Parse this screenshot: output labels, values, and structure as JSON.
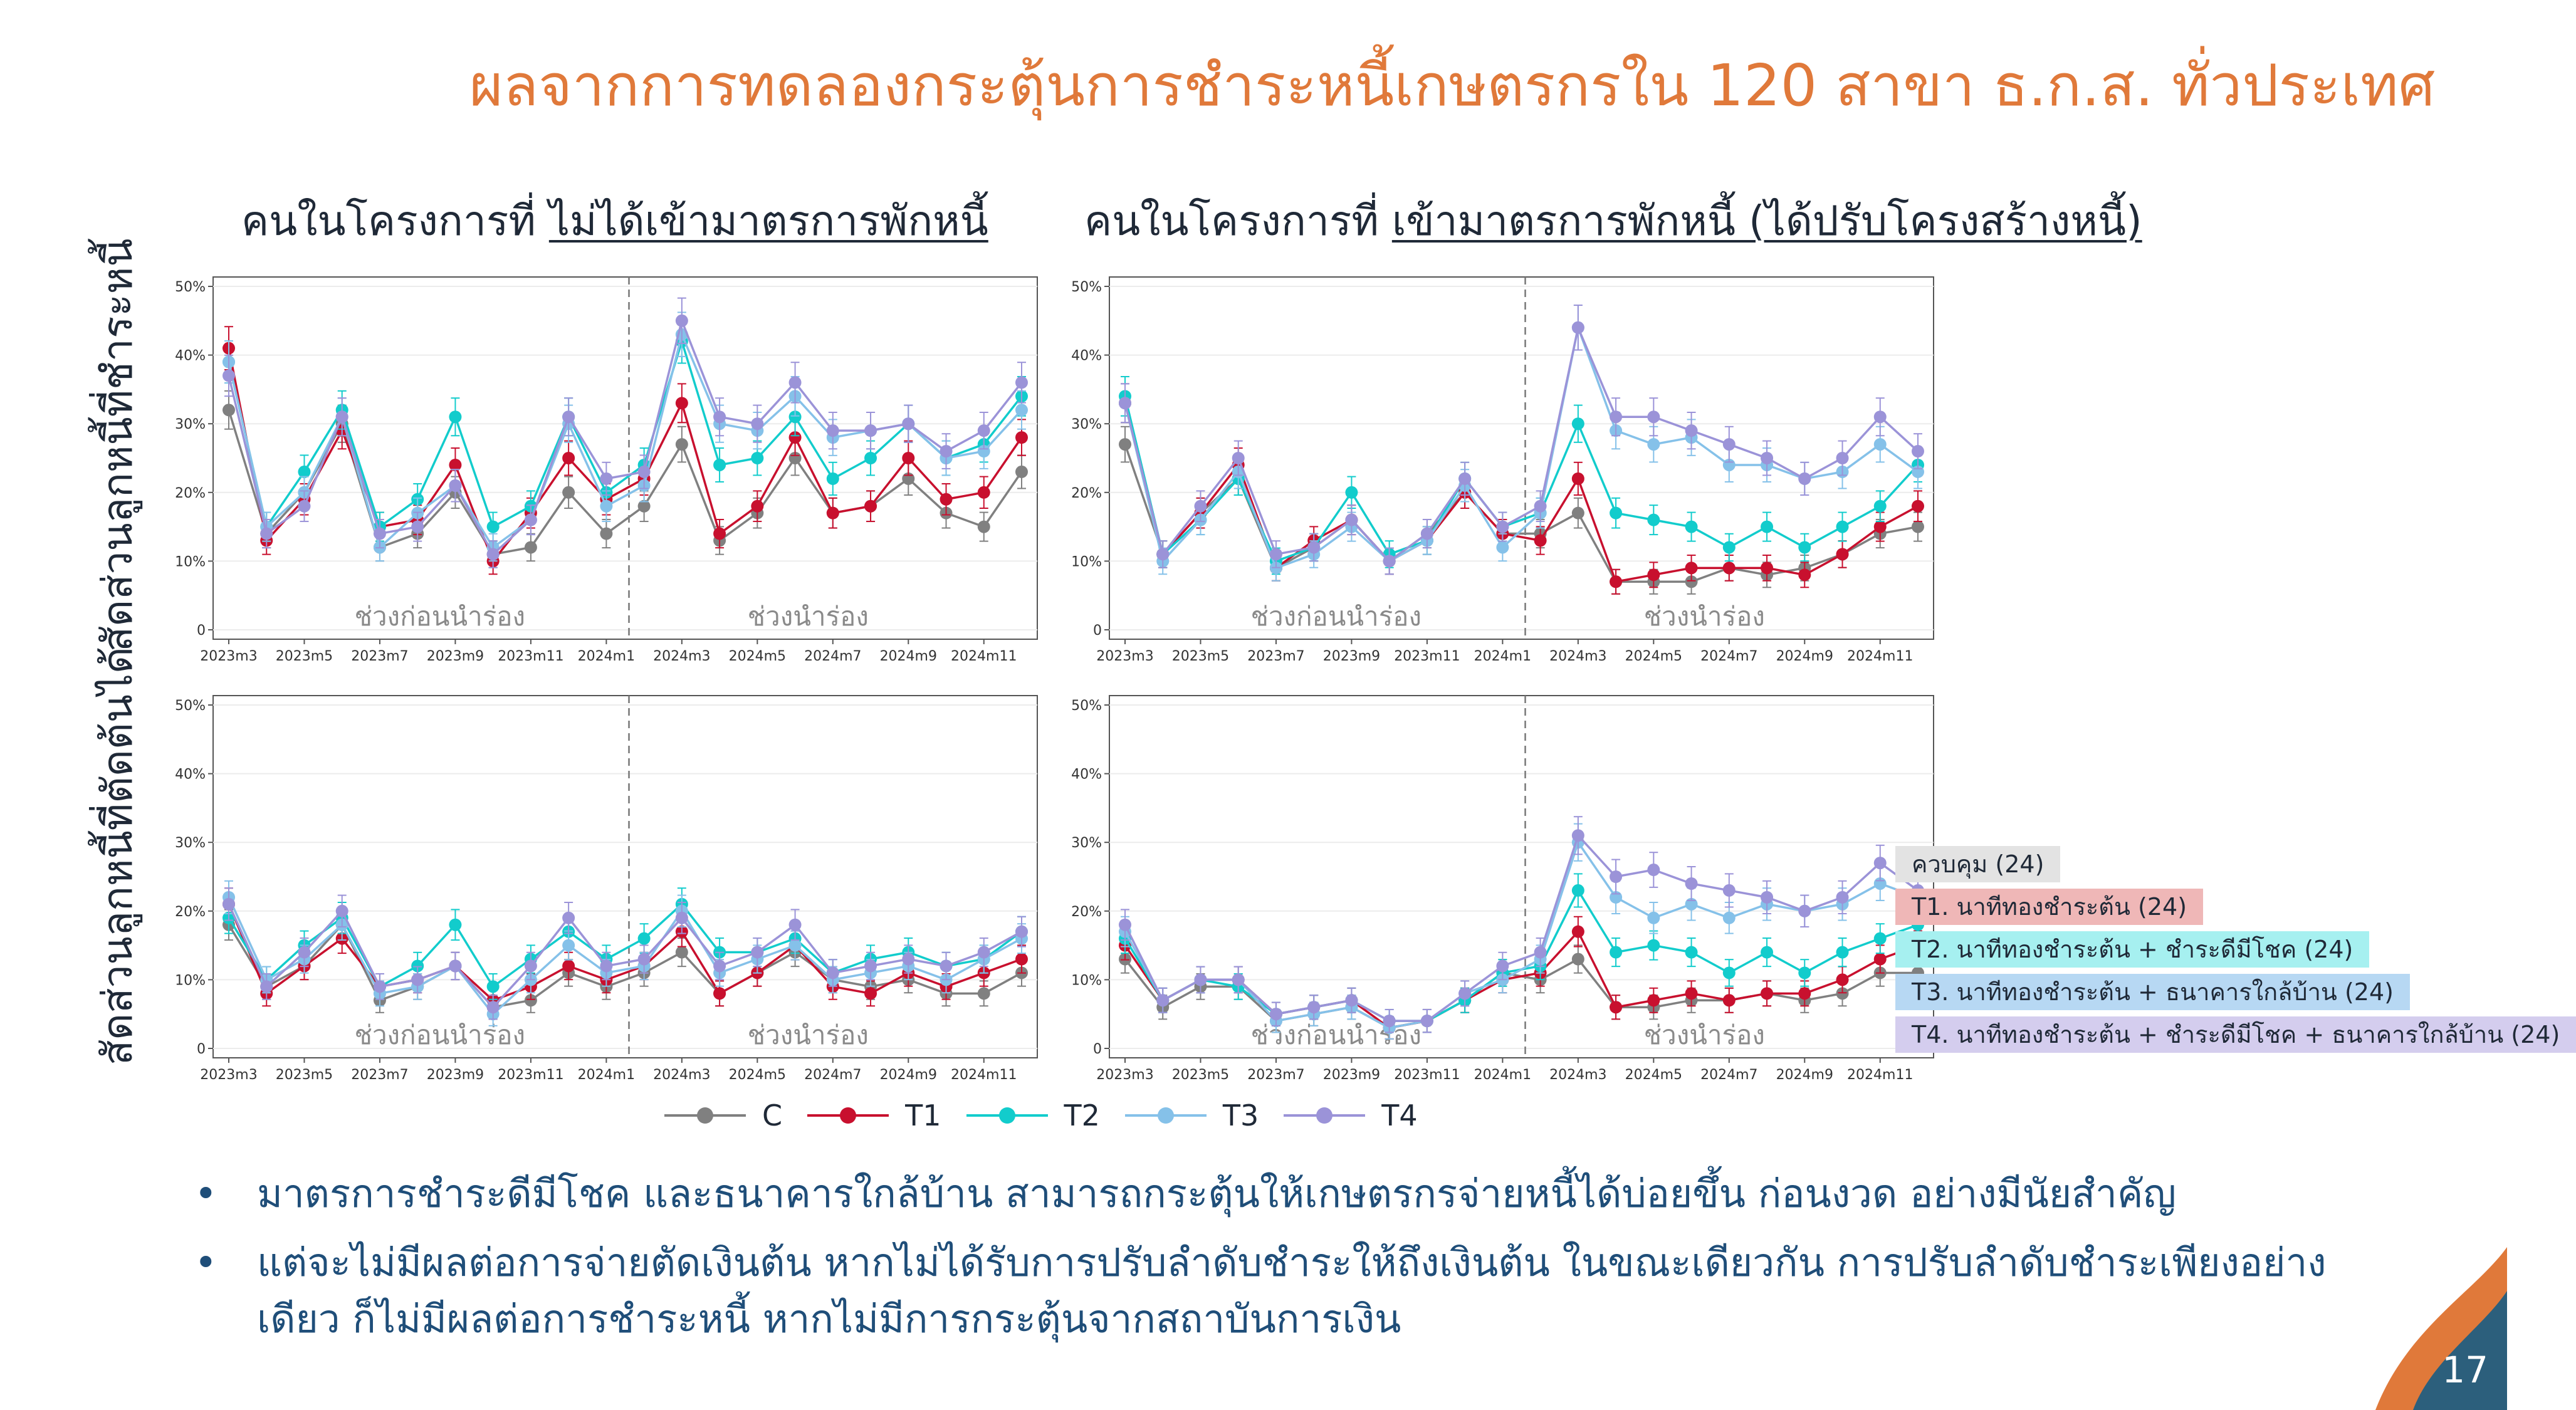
{
  "title": "ผลจากการทดลองกระตุ้นการชำระหนี้เกษตรกรใน 120 สาขา ธ.ก.ส. ทั่วประเทศ",
  "columns": [
    {
      "prefix": "คนในโครงการที่ ",
      "emph": "ไม่ได้เข้ามาตรการพักหนี้"
    },
    {
      "prefix": "คนในโครงการที่ ",
      "emph": "เข้ามาตรการพักหนี้ (ได้ปรับโครงสร้างหนี้)"
    }
  ],
  "row_labels": [
    "สัดส่วนลูกหนี้ที่ชำระหนี้",
    "สัดส่วนลูกหนี้ที่ตัดต้นได้"
  ],
  "period_labels": {
    "before": "ช่วงก่อนนำร่อง",
    "during": "ช่วงนำร่อง"
  },
  "legend": [
    {
      "name": "C",
      "color": "#808080"
    },
    {
      "name": "T1",
      "color": "#c8102e"
    },
    {
      "name": "T2",
      "color": "#12cccc"
    },
    {
      "name": "T3",
      "color": "#85c1e9"
    },
    {
      "name": "T4",
      "color": "#9b93d8"
    }
  ],
  "group_tags": [
    {
      "label": "ควบคุม (24)",
      "bg": "#e3e3e3"
    },
    {
      "label": "T1. นาทีทองชำระต้น (24)",
      "bg": "#efb7b7"
    },
    {
      "label": "T2. นาทีทองชำระต้น + ชำระดีมีโชค (24)",
      "bg": "#a6f0f0"
    },
    {
      "label": "T3. นาทีทองชำระต้น + ธนาคารใกล้บ้าน (24)",
      "bg": "#b7d8f3"
    },
    {
      "label": "T4. นาทีทองชำระต้น + ชำระดีมีโชค + ธนาคารใกล้บ้าน (24)",
      "bg": "#d4cdee"
    }
  ],
  "bullets": [
    "มาตรการชำระดีมีโชค และธนาคารใกล้บ้าน สามารถกระตุ้นให้เกษตรกรจ่ายหนี้ได้บ่อยขึ้น ก่อนงวด อย่างมีนัยสำคัญ",
    "แต่จะไม่มีผลต่อการจ่ายตัดเงินต้น หากไม่ได้รับการปรับลำดับชำระให้ถึงเงินต้น ในขณะเดียวกัน การปรับลำดับชำระเพียงอย่าง เดียว ก็ไม่มีผลต่อการชำระหนี้ หากไม่มีการกระตุ้นจากสถาบันการเงิน"
  ],
  "page_number": "17",
  "chart_data": [
    {
      "type": "line",
      "panel": "top-left",
      "x": [
        "2023m3",
        "2023m4",
        "2023m5",
        "2023m6",
        "2023m7",
        "2023m8",
        "2023m9",
        "2023m10",
        "2023m11",
        "2023m12",
        "2024m1",
        "2024m2",
        "2024m3",
        "2024m4",
        "2024m5",
        "2024m6",
        "2024m7",
        "2024m8",
        "2024m9",
        "2024m10",
        "2024m11",
        "2024m12"
      ],
      "xticks": [
        "2023m3",
        "2023m5",
        "2023m7",
        "2023m9",
        "2023m11",
        "2024m1",
        "2024m3",
        "2024m5",
        "2024m7",
        "2024m9",
        "2024m11"
      ],
      "yticks": [
        "0",
        "10%",
        "20%",
        "30%",
        "40%",
        "50%"
      ],
      "ylim": [
        0,
        50
      ],
      "divider_after": "2024m2",
      "series": [
        {
          "name": "C",
          "values": [
            32,
            14,
            20,
            30,
            12,
            14,
            20,
            11,
            12,
            20,
            14,
            18,
            27,
            13,
            17,
            25,
            17,
            18,
            22,
            17,
            15,
            23
          ]
        },
        {
          "name": "T1",
          "values": [
            41,
            13,
            19,
            29,
            15,
            16,
            24,
            10,
            17,
            25,
            19,
            22,
            33,
            14,
            18,
            28,
            17,
            18,
            25,
            19,
            20,
            28
          ]
        },
        {
          "name": "T2",
          "values": [
            39,
            15,
            23,
            32,
            15,
            19,
            31,
            15,
            18,
            31,
            20,
            24,
            42,
            24,
            25,
            31,
            22,
            25,
            30,
            25,
            27,
            34
          ]
        },
        {
          "name": "T3",
          "values": [
            39,
            15,
            20,
            31,
            12,
            17,
            21,
            12,
            16,
            30,
            18,
            21,
            43,
            30,
            29,
            34,
            28,
            29,
            30,
            25,
            26,
            32
          ]
        },
        {
          "name": "T4",
          "values": [
            37,
            14,
            18,
            31,
            14,
            15,
            21,
            11,
            16,
            31,
            22,
            23,
            45,
            31,
            30,
            36,
            29,
            29,
            30,
            26,
            29,
            36
          ]
        }
      ]
    },
    {
      "type": "line",
      "panel": "top-right",
      "x": [
        "2023m3",
        "2023m4",
        "2023m5",
        "2023m6",
        "2023m7",
        "2023m8",
        "2023m9",
        "2023m10",
        "2023m11",
        "2023m12",
        "2024m1",
        "2024m2",
        "2024m3",
        "2024m4",
        "2024m5",
        "2024m6",
        "2024m7",
        "2024m8",
        "2024m9",
        "2024m10",
        "2024m11",
        "2024m12"
      ],
      "xticks": [
        "2023m3",
        "2023m5",
        "2023m7",
        "2023m9",
        "2023m11",
        "2024m1",
        "2024m3",
        "2024m5",
        "2024m7",
        "2024m9",
        "2024m11"
      ],
      "yticks": [
        "0",
        "10%",
        "20%",
        "30%",
        "40%",
        "50%"
      ],
      "ylim": [
        0,
        50
      ],
      "divider_after": "2024m2",
      "series": [
        {
          "name": "C",
          "values": [
            27,
            11,
            17,
            22,
            9,
            12,
            16,
            10,
            14,
            20,
            14,
            14,
            17,
            7,
            7,
            7,
            9,
            8,
            9,
            11,
            14,
            15
          ]
        },
        {
          "name": "T1",
          "values": [
            33,
            11,
            17,
            24,
            9,
            13,
            16,
            10,
            13,
            20,
            14,
            13,
            22,
            7,
            8,
            9,
            9,
            9,
            8,
            11,
            15,
            18
          ]
        },
        {
          "name": "T2",
          "values": [
            34,
            11,
            16,
            22,
            10,
            12,
            20,
            11,
            13,
            22,
            15,
            17,
            30,
            17,
            16,
            15,
            12,
            15,
            12,
            15,
            18,
            24
          ]
        },
        {
          "name": "T3",
          "values": [
            33,
            10,
            16,
            23,
            9,
            11,
            15,
            10,
            13,
            21,
            12,
            17,
            44,
            29,
            27,
            28,
            24,
            24,
            22,
            23,
            27,
            23
          ]
        },
        {
          "name": "T4",
          "values": [
            33,
            11,
            18,
            25,
            11,
            12,
            16,
            10,
            14,
            22,
            15,
            18,
            44,
            31,
            31,
            29,
            27,
            25,
            22,
            25,
            31,
            26
          ]
        }
      ]
    },
    {
      "type": "line",
      "panel": "bottom-left",
      "x": [
        "2023m3",
        "2023m4",
        "2023m5",
        "2023m6",
        "2023m7",
        "2023m8",
        "2023m9",
        "2023m10",
        "2023m11",
        "2023m12",
        "2024m1",
        "2024m2",
        "2024m3",
        "2024m4",
        "2024m5",
        "2024m6",
        "2024m7",
        "2024m8",
        "2024m9",
        "2024m10",
        "2024m11",
        "2024m12"
      ],
      "xticks": [
        "2023m3",
        "2023m5",
        "2023m7",
        "2023m9",
        "2023m11",
        "2024m1",
        "2024m3",
        "2024m5",
        "2024m7",
        "2024m9",
        "2024m11"
      ],
      "yticks": [
        "0",
        "10%",
        "20%",
        "30%",
        "40%",
        "50%"
      ],
      "ylim": [
        0,
        50
      ],
      "divider_after": "2024m2",
      "series": [
        {
          "name": "C",
          "values": [
            18,
            9,
            12,
            18,
            7,
            9,
            12,
            6,
            7,
            11,
            9,
            11,
            14,
            8,
            11,
            14,
            10,
            9,
            10,
            8,
            8,
            11
          ]
        },
        {
          "name": "T1",
          "values": [
            21,
            8,
            12,
            16,
            9,
            10,
            12,
            7,
            9,
            12,
            10,
            12,
            17,
            8,
            11,
            15,
            9,
            8,
            11,
            9,
            11,
            13
          ]
        },
        {
          "name": "T2",
          "values": [
            19,
            10,
            15,
            19,
            9,
            12,
            18,
            9,
            13,
            17,
            13,
            16,
            21,
            14,
            14,
            16,
            11,
            13,
            14,
            12,
            13,
            17
          ]
        },
        {
          "name": "T3",
          "values": [
            22,
            10,
            13,
            18,
            8,
            9,
            12,
            5,
            10,
            15,
            11,
            12,
            20,
            11,
            13,
            15,
            10,
            11,
            12,
            10,
            13,
            16
          ]
        },
        {
          "name": "T4",
          "values": [
            21,
            9,
            14,
            20,
            9,
            10,
            12,
            6,
            12,
            19,
            12,
            13,
            19,
            12,
            14,
            18,
            11,
            12,
            13,
            12,
            14,
            17
          ]
        }
      ]
    },
    {
      "type": "line",
      "panel": "bottom-right",
      "x": [
        "2023m3",
        "2023m4",
        "2023m5",
        "2023m6",
        "2023m7",
        "2023m8",
        "2023m9",
        "2023m10",
        "2023m11",
        "2023m12",
        "2024m1",
        "2024m2",
        "2024m3",
        "2024m4",
        "2024m5",
        "2024m6",
        "2024m7",
        "2024m8",
        "2024m9",
        "2024m10",
        "2024m11",
        "2024m12"
      ],
      "xticks": [
        "2023m3",
        "2023m5",
        "2023m7",
        "2023m9",
        "2023m11",
        "2024m1",
        "2024m3",
        "2024m5",
        "2024m7",
        "2024m9",
        "2024m11"
      ],
      "yticks": [
        "0",
        "10%",
        "20%",
        "30%",
        "40%",
        "50%"
      ],
      "ylim": [
        0,
        50
      ],
      "divider_after": "2024m2",
      "series": [
        {
          "name": "C",
          "values": [
            13,
            6,
            9,
            9,
            4,
            5,
            6,
            3,
            4,
            7,
            11,
            10,
            13,
            6,
            6,
            7,
            7,
            8,
            7,
            8,
            11,
            11
          ]
        },
        {
          "name": "T1",
          "values": [
            15,
            7,
            10,
            10,
            5,
            6,
            7,
            3,
            4,
            7,
            10,
            11,
            17,
            6,
            7,
            8,
            7,
            8,
            8,
            10,
            13,
            15
          ]
        },
        {
          "name": "T2",
          "values": [
            16,
            7,
            10,
            9,
            5,
            6,
            7,
            4,
            4,
            7,
            11,
            12,
            23,
            14,
            15,
            14,
            11,
            14,
            11,
            14,
            16,
            18
          ]
        },
        {
          "name": "T3",
          "values": [
            17,
            7,
            10,
            10,
            4,
            5,
            6,
            3,
            4,
            8,
            10,
            13,
            30,
            22,
            19,
            21,
            19,
            21,
            20,
            21,
            24,
            22
          ]
        },
        {
          "name": "T4",
          "values": [
            18,
            7,
            10,
            10,
            5,
            6,
            7,
            4,
            4,
            8,
            12,
            14,
            31,
            25,
            26,
            24,
            23,
            22,
            20,
            22,
            27,
            23
          ]
        }
      ]
    }
  ]
}
